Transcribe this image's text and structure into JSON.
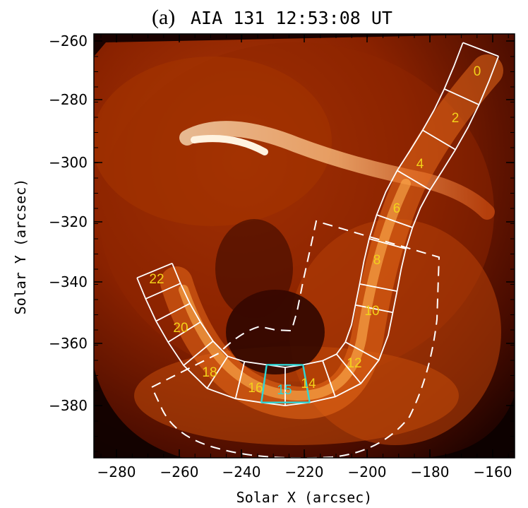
{
  "title": {
    "panel": "(a)",
    "text": "AIA 131 12:53:08 UT"
  },
  "axes": {
    "x_label": "Solar X (arcsec)",
    "y_label": "Solar Y (arcsec)",
    "x_ticks": [
      "−280",
      "−260",
      "−240",
      "−220",
      "−200",
      "−180",
      "−160"
    ],
    "y_ticks": [
      "−260",
      "−280",
      "−300",
      "−320",
      "−340",
      "−360",
      "−380"
    ]
  },
  "segment_labels": [
    {
      "text": "0",
      "highlight": false
    },
    {
      "text": "2",
      "highlight": false
    },
    {
      "text": "4",
      "highlight": false
    },
    {
      "text": "6",
      "highlight": false
    },
    {
      "text": "8",
      "highlight": false
    },
    {
      "text": "10",
      "highlight": false
    },
    {
      "text": "12",
      "highlight": false
    },
    {
      "text": "14",
      "highlight": false
    },
    {
      "text": "15",
      "highlight": true
    },
    {
      "text": "16",
      "highlight": false
    },
    {
      "text": "18",
      "highlight": false
    },
    {
      "text": "20",
      "highlight": false
    },
    {
      "text": "22",
      "highlight": false
    }
  ],
  "colors": {
    "background_dark": "#1a0200",
    "plasma_mid": "#9a2a00",
    "plasma_bright": "#ffd8a0",
    "slit_outline": "#ffffff",
    "highlight_segment": "#2fd6d6",
    "label_yellow": "#f2d21a"
  }
}
